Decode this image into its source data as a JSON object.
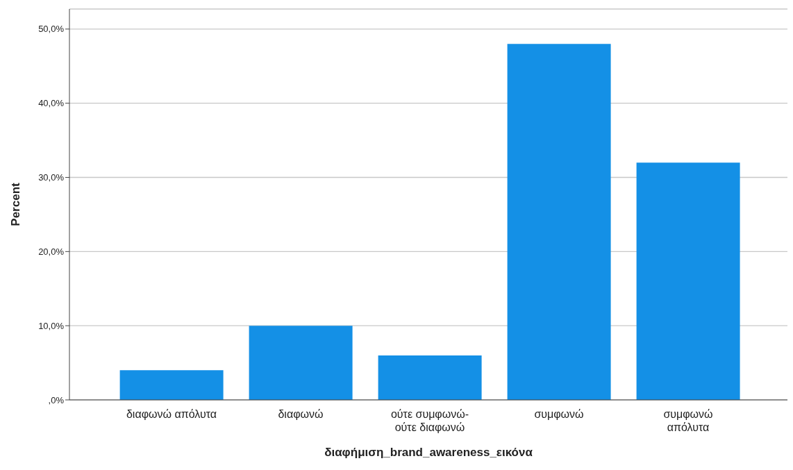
{
  "chart_data": {
    "type": "bar",
    "xlabel": "διαφήμιση_brand_awareness_εικόνα",
    "ylabel": "Percent",
    "categories": [
      "διαφωνώ απόλυτα",
      "διαφωνώ",
      "ούτε συμφωνώ-\nούτε διαφωνώ",
      "συμφωνώ",
      "συμφωνώ\nαπόλυτα"
    ],
    "values": [
      4,
      10,
      6,
      48,
      32
    ],
    "color": "#1490e6",
    "ylim": [
      0,
      52.7
    ],
    "yticks": [
      {
        "value": 0,
        "label": ",0%"
      },
      {
        "value": 10,
        "label": "10,0%"
      },
      {
        "value": 20,
        "label": "20,0%"
      },
      {
        "value": 30,
        "label": "30,0%"
      },
      {
        "value": 40,
        "label": "40,0%"
      },
      {
        "value": 50,
        "label": "50,0%"
      }
    ],
    "grid": "y"
  }
}
